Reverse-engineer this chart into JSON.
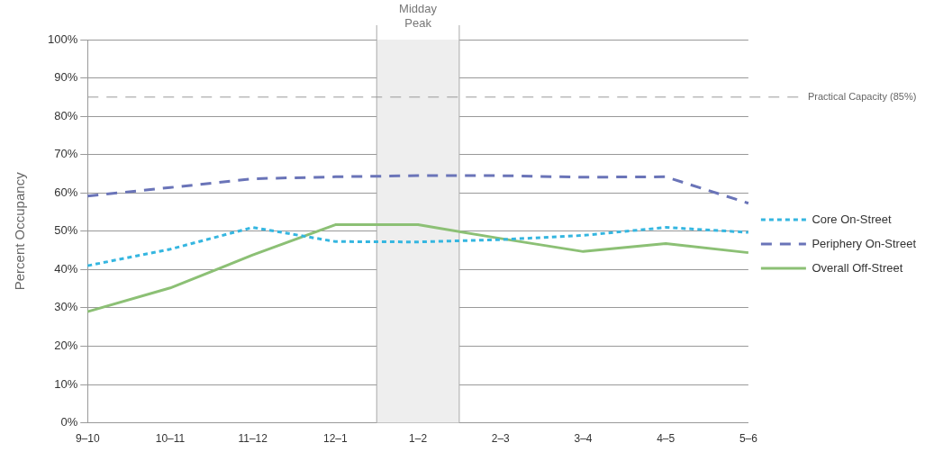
{
  "chart_data": {
    "type": "line",
    "ylabel": "Percent Occupancy",
    "categories": [
      "9–10",
      "10–11",
      "11–12",
      "12–1",
      "1–2",
      "2–3",
      "3–4",
      "4–5",
      "5–6"
    ],
    "series": [
      {
        "name": "Core On-Street",
        "color": "#35b6e0",
        "line_style": "dotted",
        "values": [
          41,
          45.3,
          51,
          47.3,
          47.2,
          47.8,
          48.9,
          51,
          49.7
        ]
      },
      {
        "name": "Periphery On-Street",
        "color": "#6a74b8",
        "line_style": "dashed",
        "values": [
          59.2,
          61.4,
          63.7,
          64.2,
          64.5,
          64.5,
          64.1,
          64.2,
          57.3
        ]
      },
      {
        "name": "Overall Off-Street",
        "color": "#8cc075",
        "line_style": "solid",
        "values": [
          29,
          35.2,
          43.8,
          51.7,
          51.7,
          48.1,
          44.7,
          46.8,
          44.4
        ]
      }
    ],
    "ylim": [
      0,
      100
    ],
    "yticks": [
      {
        "value": 0,
        "label": "0%"
      },
      {
        "value": 10,
        "label": "10%"
      },
      {
        "value": 20,
        "label": "20%"
      },
      {
        "value": 30,
        "label": "30%"
      },
      {
        "value": 40,
        "label": "40%"
      },
      {
        "value": 50,
        "label": "50%"
      },
      {
        "value": 60,
        "label": "60%"
      },
      {
        "value": 70,
        "label": "70%"
      },
      {
        "value": 80,
        "label": "80%"
      },
      {
        "value": 90,
        "label": "90%"
      },
      {
        "value": 100,
        "label": "100%"
      }
    ],
    "ref_lines": [
      {
        "axis": "y",
        "value": 85,
        "label": "Practical Capacity (85%)",
        "color": "#999999",
        "line_style": "dashed"
      }
    ],
    "bands": [
      {
        "axis": "x",
        "from": "1–2",
        "to": "1–2",
        "label": "Midday Peak",
        "color": "#eeeeee"
      }
    ],
    "grid": "y",
    "legend": "right",
    "marker": "none"
  }
}
